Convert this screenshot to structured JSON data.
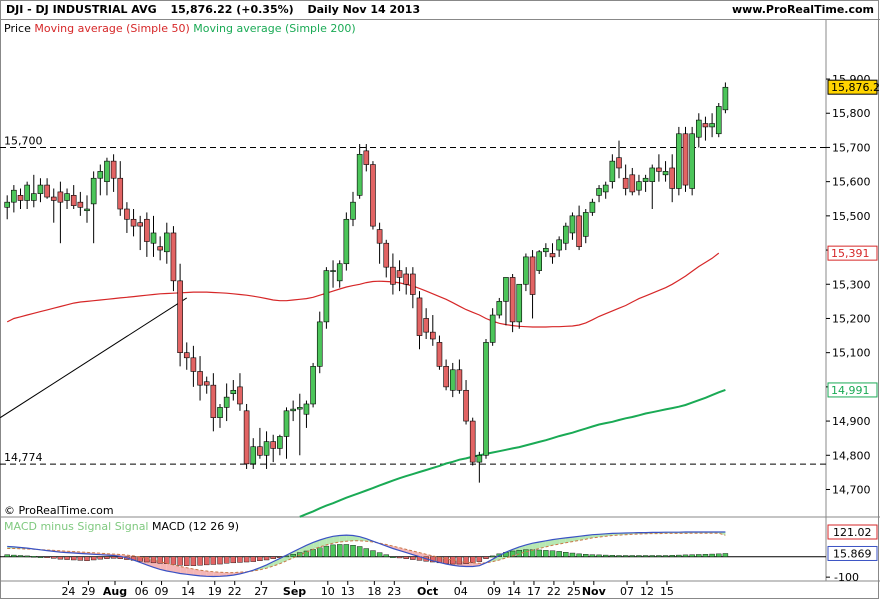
{
  "header": {
    "symbol": "DJI - DJ INDUSTRIAL AVG",
    "price_change": "15,876.22 (+0.35%)",
    "period": "Daily  Nov 14 2013",
    "site": "www.ProRealTime.com"
  },
  "legend": {
    "price": "Price",
    "ma50": "Moving average (Simple 50)",
    "ma200": "Moving average (Simple 200)"
  },
  "watermark": "© ProRealTime.com",
  "macd_legend": {
    "hist_label": "MACD minus Signal Signal",
    "macd_label": "MACD (12 26 9)"
  },
  "colors": {
    "up": "#4cc55a",
    "down": "#e26464",
    "ma50": "#d62728",
    "ma200": "#1aaa55",
    "macd": "#3a52c4",
    "signal": "#c87848",
    "grid": "#cccccc"
  },
  "chart_data": [
    {
      "type": "candlestick",
      "ylim": [
        14640,
        16020
      ],
      "y_ticks": [
        "15,900",
        "15,800",
        "15,700",
        "15,600",
        "15,500",
        "15,400",
        "15,300",
        "15,200",
        "15,100",
        "15,000",
        "14,900",
        "14,800",
        "14,700"
      ],
      "y_tick_values": [
        15900,
        15800,
        15700,
        15600,
        15500,
        15400,
        15300,
        15200,
        15100,
        15000,
        14900,
        14800,
        14700
      ],
      "x_ticks": [
        "24",
        "29",
        "Aug",
        "06",
        "09",
        "14",
        "19",
        "22",
        "27",
        "Sep",
        "10",
        "13",
        "18",
        "23",
        "Oct",
        "04",
        "09",
        "14",
        "17",
        "22",
        "25",
        "Nov",
        "07",
        "12",
        "15"
      ],
      "x_tick_bars": [
        5,
        8,
        12,
        16,
        19,
        23,
        27,
        30,
        34,
        39,
        44,
        47,
        51,
        54,
        59,
        64,
        69,
        72,
        75,
        78,
        81,
        84,
        89,
        92,
        95
      ],
      "candles": [
        [
          15525,
          15560,
          15490,
          15540
        ],
        [
          15540,
          15590,
          15510,
          15575
        ],
        [
          15560,
          15580,
          15520,
          15545
        ],
        [
          15545,
          15600,
          15520,
          15590
        ],
        [
          15545,
          15620,
          15525,
          15565
        ],
        [
          15565,
          15610,
          15540,
          15590
        ],
        [
          15590,
          15610,
          15550,
          15555
        ],
        [
          15555,
          15580,
          15480,
          15545
        ],
        [
          15570,
          15600,
          15420,
          15540
        ],
        [
          15545,
          15580,
          15520,
          15565
        ],
        [
          15560,
          15590,
          15520,
          15530
        ],
        [
          15540,
          15570,
          15500,
          15525
        ],
        [
          15515,
          15560,
          15480,
          15520
        ],
        [
          15535,
          15630,
          15420,
          15610
        ],
        [
          15610,
          15650,
          15560,
          15630
        ],
        [
          15600,
          15670,
          15560,
          15660
        ],
        [
          15660,
          15680,
          15570,
          15610
        ],
        [
          15610,
          15660,
          15500,
          15520
        ],
        [
          15520,
          15540,
          15450,
          15490
        ],
        [
          15490,
          15520,
          15440,
          15470
        ],
        [
          15480,
          15500,
          15400,
          15470
        ],
        [
          15490,
          15510,
          15380,
          15425
        ],
        [
          15420,
          15500,
          15380,
          15450
        ],
        [
          15410,
          15440,
          15370,
          15400
        ],
        [
          15395,
          15480,
          15360,
          15450
        ],
        [
          15450,
          15470,
          15280,
          15310
        ],
        [
          15310,
          15360,
          15060,
          15100
        ],
        [
          15100,
          15130,
          15050,
          15085
        ],
        [
          15085,
          15120,
          15000,
          15045
        ],
        [
          15045,
          15090,
          14960,
          15005
        ],
        [
          15015,
          15030,
          14980,
          15005
        ],
        [
          15005,
          15040,
          14870,
          14910
        ],
        [
          14910,
          14950,
          14880,
          14940
        ],
        [
          14940,
          15010,
          14900,
          14970
        ],
        [
          14980,
          15020,
          14960,
          14990
        ],
        [
          15000,
          15040,
          14930,
          14950
        ],
        [
          14930,
          14950,
          14760,
          14775
        ],
        [
          14775,
          14850,
          14760,
          14825
        ],
        [
          14825,
          14880,
          14790,
          14800
        ],
        [
          14800,
          14870,
          14760,
          14840
        ],
        [
          14840,
          14860,
          14780,
          14820
        ],
        [
          14820,
          14860,
          14800,
          14855
        ],
        [
          14855,
          14940,
          14790,
          14930
        ],
        [
          14930,
          14960,
          14900,
          14935
        ],
        [
          14935,
          14980,
          14800,
          14940
        ],
        [
          14920,
          14960,
          14880,
          14950
        ],
        [
          14950,
          15070,
          14940,
          15060
        ],
        [
          15060,
          15220,
          15040,
          15190
        ],
        [
          15190,
          15350,
          15170,
          15340
        ],
        [
          15340,
          15370,
          15290,
          15340
        ],
        [
          15310,
          15370,
          15290,
          15360
        ],
        [
          15360,
          15510,
          15340,
          15490
        ],
        [
          15490,
          15570,
          15470,
          15540
        ],
        [
          15560,
          15710,
          15550,
          15680
        ],
        [
          15690,
          15710,
          15630,
          15650
        ],
        [
          15650,
          15660,
          15460,
          15470
        ],
        [
          15460,
          15480,
          15360,
          15420
        ],
        [
          15420,
          15430,
          15320,
          15350
        ],
        [
          15350,
          15390,
          15270,
          15300
        ],
        [
          15340,
          15370,
          15280,
          15320
        ],
        [
          15330,
          15350,
          15270,
          15300
        ],
        [
          15330,
          15350,
          15230,
          15270
        ],
        [
          15260,
          15280,
          15110,
          15150
        ],
        [
          15200,
          15230,
          15140,
          15160
        ],
        [
          15160,
          15210,
          15120,
          15140
        ],
        [
          15130,
          15150,
          15050,
          15060
        ],
        [
          15060,
          15080,
          14990,
          15000
        ],
        [
          14990,
          15070,
          14970,
          15050
        ],
        [
          15050,
          15080,
          14980,
          14990
        ],
        [
          14990,
          15020,
          14890,
          14900
        ],
        [
          14900,
          14910,
          14770,
          14780
        ],
        [
          14780,
          14810,
          14720,
          14800
        ],
        [
          14800,
          15140,
          14790,
          15130
        ],
        [
          15130,
          15230,
          15120,
          15210
        ],
        [
          15210,
          15260,
          15200,
          15250
        ],
        [
          15250,
          15320,
          15180,
          15320
        ],
        [
          15320,
          15330,
          15160,
          15190
        ],
        [
          15190,
          15300,
          15170,
          15300
        ],
        [
          15300,
          15390,
          15280,
          15380
        ],
        [
          15380,
          15400,
          15200,
          15270
        ],
        [
          15340,
          15400,
          15330,
          15395
        ],
        [
          15395,
          15420,
          15380,
          15405
        ],
        [
          15390,
          15420,
          15360,
          15380
        ],
        [
          15400,
          15440,
          15380,
          15430
        ],
        [
          15420,
          15480,
          15400,
          15470
        ],
        [
          15450,
          15510,
          15430,
          15500
        ],
        [
          15500,
          15530,
          15400,
          15410
        ],
        [
          15440,
          15520,
          15420,
          15510
        ],
        [
          15510,
          15550,
          15500,
          15540
        ],
        [
          15560,
          15590,
          15540,
          15580
        ],
        [
          15570,
          15600,
          15550,
          15590
        ],
        [
          15600,
          15680,
          15580,
          15660
        ],
        [
          15670,
          15720,
          15610,
          15640
        ],
        [
          15610,
          15650,
          15560,
          15580
        ],
        [
          15620,
          15640,
          15560,
          15570
        ],
        [
          15575,
          15620,
          15560,
          15600
        ],
        [
          15600,
          15620,
          15570,
          15610
        ],
        [
          15600,
          15650,
          15520,
          15640
        ],
        [
          15640,
          15680,
          15600,
          15630
        ],
        [
          15620,
          15660,
          15600,
          15630
        ],
        [
          15640,
          15680,
          15540,
          15580
        ],
        [
          15580,
          15760,
          15560,
          15740
        ],
        [
          15740,
          15760,
          15570,
          15590
        ],
        [
          15580,
          15760,
          15560,
          15740
        ],
        [
          15730,
          15800,
          15700,
          15780
        ],
        [
          15770,
          15790,
          15720,
          15760
        ],
        [
          15760,
          15800,
          15730,
          15770
        ],
        [
          15740,
          15830,
          15730,
          15820
        ],
        [
          15810,
          15890,
          15800,
          15876
        ]
      ],
      "horizontal_levels": [
        {
          "label": "15,700",
          "value": 15700
        },
        {
          "label": "14,774",
          "value": 14774
        }
      ],
      "price_badges": [
        {
          "label": "15,876.22",
          "value": 15876.22,
          "series": "Price"
        },
        {
          "label": "15,391",
          "value": 15391,
          "series": "ma50"
        },
        {
          "label": "14,991",
          "value": 14991,
          "series": "ma200"
        }
      ],
      "ma50": [
        15190,
        15200,
        15205,
        15210,
        15215,
        15220,
        15225,
        15230,
        15235,
        15240,
        15245,
        15248,
        15250,
        15252,
        15254,
        15256,
        15258,
        15260,
        15262,
        15264,
        15266,
        15268,
        15270,
        15272,
        15273,
        15274,
        15275,
        15276,
        15277,
        15277,
        15277,
        15276,
        15275,
        15274,
        15272,
        15270,
        15268,
        15265,
        15262,
        15258,
        15254,
        15252,
        15252,
        15254,
        15256,
        15258,
        15262,
        15268,
        15274,
        15280,
        15286,
        15292,
        15296,
        15300,
        15305,
        15308,
        15309,
        15308,
        15307,
        15304,
        15300,
        15295,
        15288,
        15280,
        15272,
        15264,
        15256,
        15246,
        15236,
        15226,
        15218,
        15210,
        15200,
        15192,
        15186,
        15182,
        15179,
        15177,
        15176,
        15175,
        15175,
        15175,
        15176,
        15176,
        15177,
        15178,
        15181,
        15187,
        15196,
        15206,
        15214,
        15222,
        15230,
        15238,
        15248,
        15258,
        15266,
        15274,
        15282,
        15290,
        15300,
        15312,
        15324,
        15338,
        15352,
        15364,
        15376,
        15391
      ],
      "ma200": [
        14620,
        14628,
        14636,
        14645,
        14653,
        14660,
        14668,
        14676,
        14683,
        14690,
        14697,
        14704,
        14712,
        14719,
        14726,
        14733,
        14739,
        14745,
        14751,
        14757,
        14763,
        14769,
        14776,
        14781,
        14787,
        14791,
        14796,
        14800,
        14804,
        14808,
        14812,
        14816,
        14820,
        14824,
        14829,
        14834,
        14839,
        14844,
        14850,
        14856,
        14861,
        14866,
        14872,
        14878,
        14884,
        14890,
        14894,
        14898,
        14903,
        14908,
        14912,
        14917,
        14922,
        14926,
        14930,
        14934,
        14938,
        14942,
        14947,
        14954,
        14961,
        14968,
        14976,
        14984,
        14991
      ],
      "trendline": {
        "from": [
          0,
          14910
        ],
        "to": [
          27,
          15260
        ]
      }
    },
    {
      "type": "bar+line",
      "name": "MACD (12 26 9)",
      "ylim": [
        -114,
        170
      ],
      "y_ticks": [
        "-100"
      ],
      "y_tick_values": [
        -100
      ],
      "value_badges": [
        {
          "label": "121.02",
          "value": 121.02
        },
        {
          "label": "15.869",
          "value": 15.869
        }
      ],
      "histogram": [
        10,
        8,
        6,
        4,
        2,
        0,
        -4,
        -8,
        -12,
        -14,
        -16,
        -18,
        -20,
        -16,
        -12,
        -10,
        -8,
        -10,
        -14,
        -18,
        -22,
        -26,
        -30,
        -32,
        -34,
        -38,
        -42,
        -44,
        -44,
        -42,
        -40,
        -38,
        -36,
        -32,
        -30,
        -28,
        -26,
        -24,
        -20,
        -16,
        -10,
        -4,
        4,
        12,
        20,
        28,
        36,
        44,
        52,
        58,
        60,
        60,
        56,
        50,
        40,
        30,
        20,
        10,
        0,
        -6,
        -10,
        -14,
        -18,
        -22,
        -26,
        -30,
        -34,
        -36,
        -36,
        -34,
        -30,
        -24,
        -10,
        4,
        14,
        22,
        28,
        32,
        34,
        34,
        33,
        31,
        29,
        26,
        22,
        18,
        14,
        12,
        10,
        9,
        8,
        7,
        6,
        6,
        6,
        6,
        6,
        6,
        6,
        6,
        7,
        8,
        9,
        10,
        11,
        12,
        13,
        14,
        15.869
      ],
      "macd": [
        50,
        48,
        45,
        42,
        38,
        34,
        30,
        26,
        22,
        20,
        18,
        16,
        14,
        12,
        10,
        8,
        6,
        2,
        -6,
        -16,
        -28,
        -40,
        -52,
        -62,
        -70,
        -76,
        -82,
        -86,
        -90,
        -94,
        -96,
        -97,
        -96,
        -94,
        -90,
        -84,
        -76,
        -66,
        -54,
        -40,
        -24,
        -8,
        8,
        24,
        40,
        56,
        70,
        82,
        92,
        100,
        104,
        106,
        104,
        98,
        88,
        76,
        64,
        52,
        40,
        30,
        20,
        10,
        0,
        -10,
        -20,
        -28,
        -36,
        -42,
        -46,
        -48,
        -48,
        -44,
        -30,
        -12,
        6,
        22,
        36,
        48,
        58,
        66,
        72,
        78,
        84,
        88,
        92,
        96,
        100,
        104,
        108,
        110,
        112,
        114,
        115,
        116,
        117,
        118,
        118,
        119,
        119,
        120,
        120,
        120,
        121,
        121,
        121,
        121,
        121,
        121,
        121.02
      ],
      "signal": [
        40,
        40,
        39,
        38,
        37,
        35,
        33,
        31,
        29,
        27,
        25,
        23,
        21,
        19,
        17,
        15,
        13,
        11,
        8,
        4,
        -2,
        -8,
        -16,
        -24,
        -32,
        -40,
        -48,
        -54,
        -60,
        -66,
        -70,
        -74,
        -76,
        -78,
        -78,
        -76,
        -74,
        -70,
        -64,
        -56,
        -46,
        -34,
        -20,
        -6,
        8,
        22,
        36,
        48,
        58,
        66,
        72,
        76,
        78,
        78,
        76,
        72,
        66,
        60,
        52,
        44,
        36,
        28,
        20,
        12,
        4,
        -4,
        -10,
        -16,
        -22,
        -26,
        -30,
        -32,
        -30,
        -24,
        -16,
        -6,
        4,
        14,
        24,
        32,
        40,
        48,
        56,
        62,
        68,
        74,
        80,
        86,
        92,
        96,
        100,
        104,
        106,
        108,
        110,
        111,
        112,
        113,
        113,
        114,
        114,
        114,
        114,
        115,
        115,
        115,
        115,
        115,
        105
      ]
    }
  ]
}
